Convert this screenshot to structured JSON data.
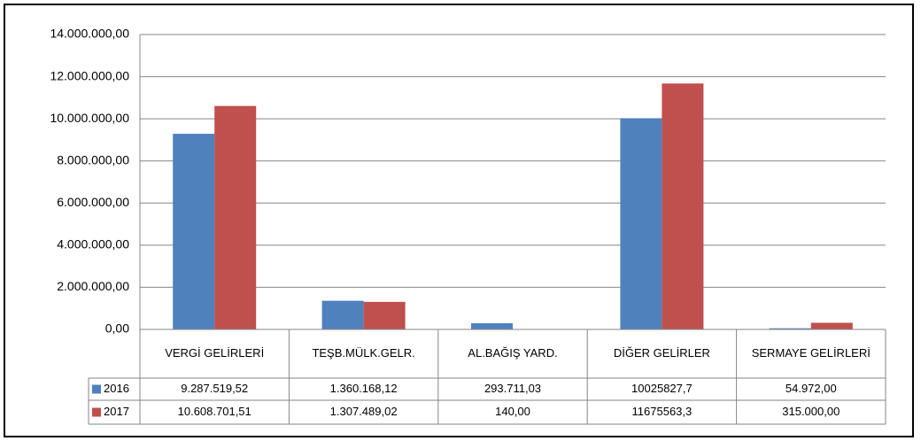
{
  "chart_data": {
    "type": "bar",
    "categories": [
      "VERGİ GELİRLERİ",
      "TEŞB.MÜLK.GELR.",
      "AL.BAĞIŞ YARD.",
      "DİĞER GELİRLER",
      "SERMAYE GELİRLERİ"
    ],
    "series": [
      {
        "name": "2016",
        "color": "#4f81bd",
        "values": [
          9287519.52,
          1360168.12,
          293711.03,
          10025827.7,
          54972.0
        ],
        "value_labels": [
          "9.287.519,52",
          "1.360.168,12",
          "293.711,03",
          "10025827,7",
          "54.972,00"
        ]
      },
      {
        "name": "2017",
        "color": "#c0504d",
        "values": [
          10608701.51,
          1307489.02,
          140.0,
          11675563.3,
          315000.0
        ],
        "value_labels": [
          "10.608.701,51",
          "1.307.489,02",
          "140,00",
          "11675563,3",
          "315.000,00"
        ]
      }
    ],
    "ylim": [
      0,
      14000000
    ],
    "yticks": [
      {
        "value": 0,
        "label": "0,00"
      },
      {
        "value": 2000000,
        "label": "2.000.000,00"
      },
      {
        "value": 4000000,
        "label": "4.000.000,00"
      },
      {
        "value": 6000000,
        "label": "6.000.000,00"
      },
      {
        "value": 8000000,
        "label": "8.000.000,00"
      },
      {
        "value": 10000000,
        "label": "10.000.000,00"
      },
      {
        "value": 12000000,
        "label": "12.000.000,00"
      },
      {
        "value": 14000000,
        "label": "14.000.000,00"
      }
    ],
    "grid": true
  }
}
